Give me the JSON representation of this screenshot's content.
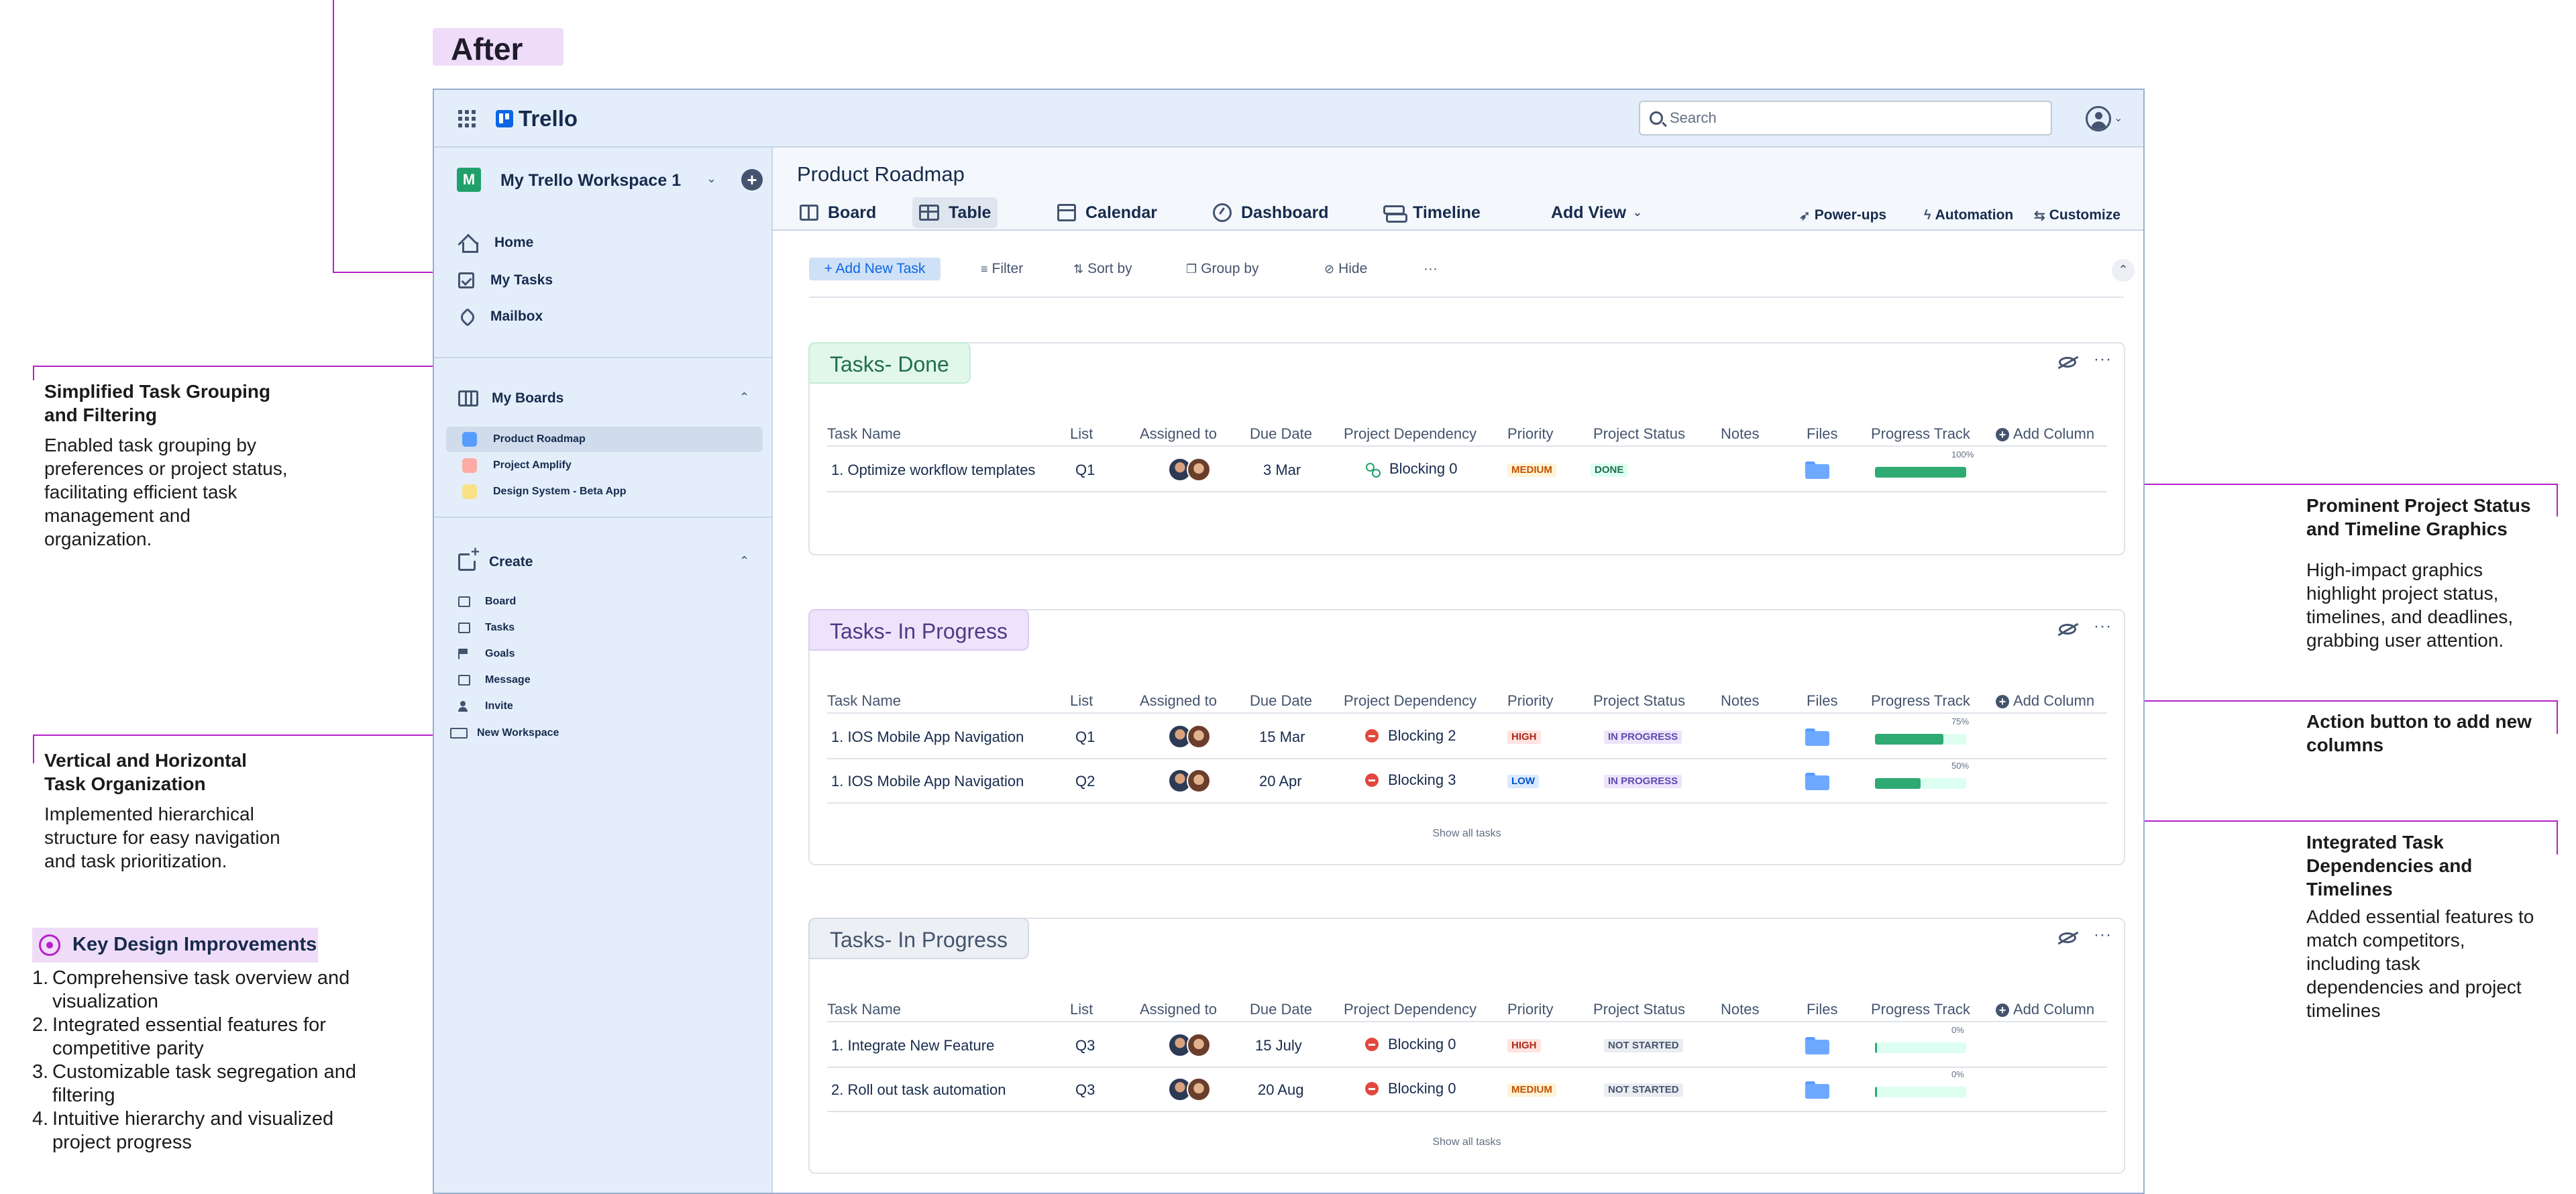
{
  "after_label": "After",
  "annotations": {
    "grouping": {
      "title": "Simplified Task Grouping and Filtering",
      "text": "Enabled task grouping by preferences or project status, facilitating efficient task management and organization."
    },
    "hierarchy": {
      "title": "Vertical and Horizontal Task Organization",
      "text": "Implemented hierarchical structure for easy navigation and task prioritization."
    },
    "status": {
      "title": "Prominent Project Status and Timeline Graphics",
      "text": "High-impact graphics highlight project status, timelines, and deadlines, grabbing user attention."
    },
    "add_column": {
      "title": "Action button to add new columns",
      "text": ""
    },
    "dependencies": {
      "title": "Integrated Task Dependencies and Timelines",
      "text": "Added essential features to match competitors, including task dependencies and project timelines"
    }
  },
  "key_improvements": {
    "title": "Key Design Improvements",
    "items": [
      "Comprehensive task overview and visualization",
      "Integrated essential features for competitive parity",
      "Customizable task segregation and filtering",
      "Intuitive hierarchy and visualized project progress"
    ]
  },
  "app": {
    "brand": "Trello",
    "search_placeholder": "Search",
    "workspace": {
      "badge": "M",
      "name": "My Trello Workspace 1"
    },
    "nav": [
      "Home",
      "My Tasks",
      "Mailbox"
    ],
    "my_boards": {
      "title": "My Boards",
      "items": [
        {
          "label": "Product Roadmap",
          "color": "#579dff",
          "active": true
        },
        {
          "label": "Project Amplify",
          "color": "#fdaba4",
          "active": false
        },
        {
          "label": "Design System - Beta App",
          "color": "#f8e187",
          "active": false
        }
      ]
    },
    "create": {
      "title": "Create",
      "items": [
        "Board",
        "Tasks",
        "Goals",
        "Message",
        "Invite",
        "New Workspace"
      ]
    },
    "page_title": "Product Roadmap",
    "views": [
      "Board",
      "Table",
      "Calendar",
      "Dashboard",
      "Timeline",
      "Add View"
    ],
    "active_view": "Table",
    "right_actions": [
      "Power-ups",
      "Automation",
      "Customize"
    ],
    "toolbar": [
      "+ Add New Task",
      "Filter",
      "Sort by",
      "Group by",
      "Hide",
      "···"
    ],
    "columns": [
      "Task Name",
      "List",
      "Assigned to",
      "Due Date",
      "Project Dependency",
      "Priority",
      "Project Status",
      "Notes",
      "Files",
      "Progress Track",
      "Add Column"
    ],
    "show_all": "Show all tasks",
    "groups": [
      {
        "title": "Tasks- Done",
        "rows": [
          {
            "task": "1. Optimize workflow templates",
            "list": "Q1",
            "due": "3 Mar",
            "dependency": "Blocking 0",
            "dep_type": "ok",
            "priority": "MEDIUM",
            "status": "DONE",
            "progress": 100,
            "progress_label": "100%"
          }
        ]
      },
      {
        "title": "Tasks- In Progress",
        "rows": [
          {
            "task": "1. IOS Mobile App Navigation",
            "list": "Q1",
            "due": "15 Mar",
            "dependency": "Blocking 2",
            "dep_type": "block",
            "priority": "HIGH",
            "status": "IN PROGRESS",
            "progress": 75,
            "progress_label": "75%"
          },
          {
            "task": "1. IOS Mobile App Navigation",
            "list": "Q2",
            "due": "20 Apr",
            "dependency": "Blocking 3",
            "dep_type": "block",
            "priority": "LOW",
            "status": "IN PROGRESS",
            "progress": 50,
            "progress_label": "50%"
          }
        ]
      },
      {
        "title": "Tasks- In Progress",
        "rows": [
          {
            "task": "1. Integrate New Feature",
            "list": "Q3",
            "due": "15 July",
            "dependency": "Blocking 0",
            "dep_type": "block",
            "priority": "HIGH",
            "status": "NOT STARTED",
            "progress": 0,
            "progress_label": "0%"
          },
          {
            "task": "2. Roll out task automation",
            "list": "Q3",
            "due": "20 Aug",
            "dependency": "Blocking 0",
            "dep_type": "block",
            "priority": "MEDIUM",
            "status": "NOT STARTED",
            "progress": 0,
            "progress_label": "0%"
          }
        ]
      }
    ]
  },
  "colors": {
    "accent_line": "#b620c8",
    "brand_blue": "#0c66e4",
    "progress_green": "#2eaa73"
  }
}
